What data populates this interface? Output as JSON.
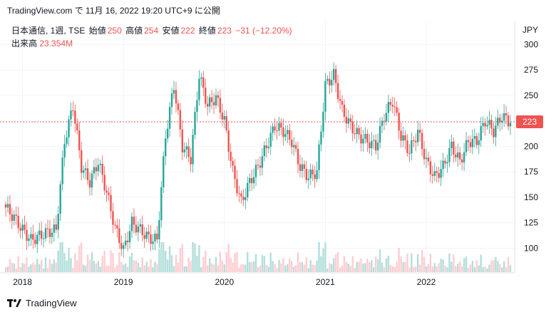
{
  "header": {
    "text": "TradingView.com で 11月 16, 2022 19:20 UTC+9 に公開"
  },
  "legend": {
    "symbol": "日本通信, 1週, TSE",
    "open_label": "始値",
    "open": "250",
    "high_label": "高値",
    "high": "254",
    "low_label": "安値",
    "low": "222",
    "close_label": "終値",
    "close": "223",
    "change": "−31 (−12.20%)",
    "volume_label": "出来高",
    "volume": "23.354M"
  },
  "unit": "JPY",
  "last_price": "223",
  "footer": {
    "brand": "TradingView"
  },
  "colors": {
    "up": "#26a69a",
    "down": "#ef5350",
    "grid": "#f0f3fa",
    "axis_text": "#131722"
  },
  "chart_data": {
    "type": "candlestick",
    "y_ticks": [
      100,
      125,
      150,
      175,
      200,
      250,
      275,
      300
    ],
    "ylim": [
      78,
      303
    ],
    "x_ticks": [
      "2018",
      "2019",
      "2020",
      "2021",
      "2022"
    ],
    "last_close": 223,
    "series": [
      {
        "name": "日本通信",
        "points": [
          {
            "x": "2017-11",
            "close": 140
          },
          {
            "x": "2017-12",
            "close": 130
          },
          {
            "x": "2018-01",
            "close": 118
          },
          {
            "x": "2018-02",
            "close": 108
          },
          {
            "x": "2018-03",
            "close": 112
          },
          {
            "x": "2018-04",
            "close": 116
          },
          {
            "x": "2018-05",
            "close": 118
          },
          {
            "x": "2018-06",
            "close": 205
          },
          {
            "x": "2018-07",
            "close": 240
          },
          {
            "x": "2018-08",
            "close": 180
          },
          {
            "x": "2018-09",
            "close": 165
          },
          {
            "x": "2018-10",
            "close": 185
          },
          {
            "x": "2018-11",
            "close": 155
          },
          {
            "x": "2018-12",
            "close": 120
          },
          {
            "x": "2019-01",
            "close": 98
          },
          {
            "x": "2019-02",
            "close": 125
          },
          {
            "x": "2019-03",
            "close": 118
          },
          {
            "x": "2019-04",
            "close": 110
          },
          {
            "x": "2019-05",
            "close": 108
          },
          {
            "x": "2019-06",
            "close": 210
          },
          {
            "x": "2019-07",
            "close": 260
          },
          {
            "x": "2019-08",
            "close": 200
          },
          {
            "x": "2019-09",
            "close": 188
          },
          {
            "x": "2019-10",
            "close": 270
          },
          {
            "x": "2019-11",
            "close": 240
          },
          {
            "x": "2019-12",
            "close": 248
          },
          {
            "x": "2020-01",
            "close": 225
          },
          {
            "x": "2020-02",
            "close": 175
          },
          {
            "x": "2020-03",
            "close": 145
          },
          {
            "x": "2020-04",
            "close": 165
          },
          {
            "x": "2020-05",
            "close": 180
          },
          {
            "x": "2020-06",
            "close": 200
          },
          {
            "x": "2020-07",
            "close": 220
          },
          {
            "x": "2020-08",
            "close": 215
          },
          {
            "x": "2020-09",
            "close": 205
          },
          {
            "x": "2020-10",
            "close": 180
          },
          {
            "x": "2020-11",
            "close": 170
          },
          {
            "x": "2020-12",
            "close": 175
          },
          {
            "x": "2021-01",
            "close": 260
          },
          {
            "x": "2021-02",
            "close": 270
          },
          {
            "x": "2021-03",
            "close": 235
          },
          {
            "x": "2021-04",
            "close": 220
          },
          {
            "x": "2021-05",
            "close": 210
          },
          {
            "x": "2021-06",
            "close": 205
          },
          {
            "x": "2021-07",
            "close": 200
          },
          {
            "x": "2021-08",
            "close": 230
          },
          {
            "x": "2021-09",
            "close": 245
          },
          {
            "x": "2021-10",
            "close": 210
          },
          {
            "x": "2021-11",
            "close": 195
          },
          {
            "x": "2021-12",
            "close": 215
          },
          {
            "x": "2022-01",
            "close": 185
          },
          {
            "x": "2022-02",
            "close": 170
          },
          {
            "x": "2022-03",
            "close": 180
          },
          {
            "x": "2022-04",
            "close": 200
          },
          {
            "x": "2022-05",
            "close": 185
          },
          {
            "x": "2022-06",
            "close": 205
          },
          {
            "x": "2022-07",
            "close": 205
          },
          {
            "x": "2022-08",
            "close": 225
          },
          {
            "x": "2022-09",
            "close": 215
          },
          {
            "x": "2022-10",
            "close": 230
          },
          {
            "x": "2022-11",
            "close": 223
          }
        ]
      }
    ]
  }
}
